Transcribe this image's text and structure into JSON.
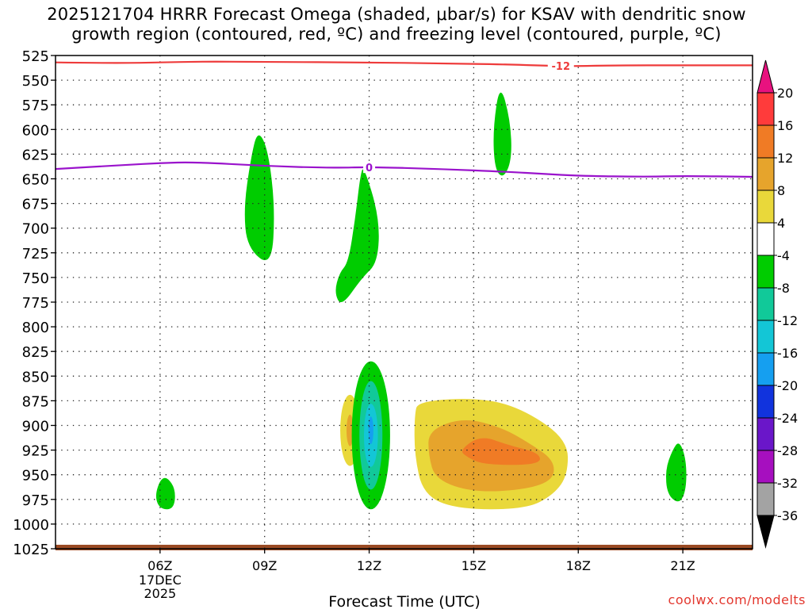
{
  "title_line1": "2025121704 HRRR Forecast Omega (shaded, μbar/s) for KSAV with dendritic snow",
  "title_line2": "growth region (contoured, red, ºC) and freezing level (contoured, purple, ºC)",
  "credit": "coolwx.com/modelts",
  "chart_data": {
    "type": "time-height cross section (filled contours)",
    "xlabel": "Forecast Time (UTC)",
    "x_unit": "hours after 2025-12-17 04Z",
    "xlim": [
      -1,
      19
    ],
    "x_ticks": [
      {
        "hour": 2,
        "label": "06Z",
        "sub": [
          "17DEC",
          "2025"
        ]
      },
      {
        "hour": 5,
        "label": "09Z"
      },
      {
        "hour": 8,
        "label": "12Z"
      },
      {
        "hour": 11,
        "label": "15Z"
      },
      {
        "hour": 14,
        "label": "18Z"
      },
      {
        "hour": 17,
        "label": "21Z"
      }
    ],
    "ylabel": "Pressure (hPa)",
    "ylim": [
      1025,
      525
    ],
    "y_ticks": [
      525,
      550,
      575,
      600,
      625,
      650,
      675,
      700,
      725,
      750,
      775,
      800,
      825,
      850,
      875,
      900,
      925,
      950,
      975,
      1000,
      1025
    ],
    "colorbar": {
      "labels": [
        "20",
        "16",
        "12",
        "8",
        "4",
        "-4",
        "-8",
        "-12",
        "-16",
        "-20",
        "-24",
        "-28",
        "-32",
        "-36"
      ],
      "colors": [
        "#ff3b3b",
        "#f07b25",
        "#e6a42c",
        "#e9d83a",
        "#ffffff",
        "#00cc00",
        "#11c999",
        "#13c6d6",
        "#159ff0",
        "#1133dd",
        "#6a16c9",
        "#a60fbf",
        "#a3a3a3"
      ],
      "top_arrow_color": "#e8127f",
      "bottom_arrow_color": "#000000"
    },
    "contours": [
      {
        "name": "dendritic-growth -12C",
        "label": "-12",
        "color": "#ee3b3b",
        "points": [
          [
            -1,
            532
          ],
          [
            1,
            533
          ],
          [
            3,
            531
          ],
          [
            5,
            531.5
          ],
          [
            8,
            532
          ],
          [
            10,
            533
          ],
          [
            12,
            534
          ],
          [
            13.5,
            536
          ],
          [
            15,
            535
          ],
          [
            17,
            535
          ],
          [
            19,
            535
          ]
        ],
        "label_at": [
          13.5,
          535.5
        ]
      },
      {
        "name": "freezing level 0C",
        "label": "0",
        "color": "#9a13cc",
        "points": [
          [
            -1,
            640
          ],
          [
            1,
            636
          ],
          [
            2,
            634
          ],
          [
            3,
            633
          ],
          [
            5,
            637
          ],
          [
            7,
            639
          ],
          [
            8,
            638
          ],
          [
            10,
            640
          ],
          [
            12,
            643
          ],
          [
            13,
            645
          ],
          [
            14,
            647
          ],
          [
            16,
            648
          ],
          [
            17,
            647
          ],
          [
            19,
            648
          ]
        ],
        "label_at": [
          8,
          638.5
        ]
      }
    ],
    "omega_areas": [
      {
        "cat": 4,
        "shape": "ellipse",
        "cx": 0.45,
        "cy": 730,
        "rx": 0.45,
        "ry": 122
      },
      {
        "cat": 4,
        "shape": "ellipse",
        "cx": 0.0,
        "cy": 900,
        "rx": 0.13,
        "ry": 22
      },
      {
        "cat": 5,
        "shape": "poly",
        "points": [
          [
            4.8,
            600
          ],
          [
            5.1,
            620
          ],
          [
            5.3,
            680
          ],
          [
            5.2,
            740
          ],
          [
            4.5,
            720
          ],
          [
            4.4,
            680
          ],
          [
            4.6,
            630
          ]
        ]
      },
      {
        "cat": 5,
        "shape": "poly",
        "points": [
          [
            7.85,
            637
          ],
          [
            8.3,
            690
          ],
          [
            8.25,
            735
          ],
          [
            7.8,
            750
          ],
          [
            7.2,
            780
          ],
          [
            7.0,
            765
          ],
          [
            7.15,
            745
          ],
          [
            7.4,
            735
          ],
          [
            7.6,
            690
          ],
          [
            7.75,
            645
          ]
        ]
      },
      {
        "cat": 5,
        "shape": "poly",
        "points": [
          [
            11.75,
            552
          ],
          [
            12.05,
            590
          ],
          [
            12.1,
            630
          ],
          [
            11.85,
            650
          ],
          [
            11.6,
            640
          ],
          [
            11.55,
            600
          ]
        ]
      },
      {
        "cat": 4,
        "shape": "poly",
        "points": [
          [
            16.85,
            680
          ],
          [
            17.0,
            720
          ],
          [
            17.2,
            760
          ],
          [
            17.1,
            800
          ],
          [
            16.75,
            810
          ],
          [
            16.5,
            800
          ],
          [
            16.5,
            760
          ],
          [
            16.7,
            720
          ]
        ]
      },
      {
        "cat": 5,
        "shape": "poly",
        "points": [
          [
            2.2,
            952
          ],
          [
            2.45,
            965
          ],
          [
            2.4,
            985
          ],
          [
            2.0,
            985
          ],
          [
            1.85,
            972
          ],
          [
            2.0,
            955
          ]
        ]
      },
      {
        "cat": 4,
        "shape": "ellipse",
        "cx": 7.45,
        "cy": 905,
        "rx": 0.55,
        "ry": 70
      },
      {
        "cat": 3,
        "shape": "ellipse",
        "cx": 7.45,
        "cy": 905,
        "rx": 0.28,
        "ry": 36
      },
      {
        "cat": 2,
        "shape": "ellipse",
        "cx": 7.45,
        "cy": 905,
        "rx": 0.1,
        "ry": 16
      },
      {
        "cat": 5,
        "shape": "ellipse",
        "cx": 8.05,
        "cy": 910,
        "rx": 0.55,
        "ry": 75
      },
      {
        "cat": 6,
        "shape": "ellipse",
        "cx": 8.05,
        "cy": 910,
        "rx": 0.33,
        "ry": 55
      },
      {
        "cat": 7,
        "shape": "ellipse",
        "cx": 8.05,
        "cy": 910,
        "rx": 0.2,
        "ry": 32
      },
      {
        "cat": 8,
        "shape": "ellipse",
        "cx": 8.05,
        "cy": 905,
        "rx": 0.07,
        "ry": 14
      },
      {
        "cat": 4,
        "shape": "poly",
        "points": [
          [
            9.2,
            862
          ],
          [
            11.5,
            858
          ],
          [
            12.6,
            870
          ],
          [
            14.05,
            905
          ],
          [
            14.1,
            950
          ],
          [
            13.5,
            980
          ],
          [
            12.6,
            992
          ],
          [
            10.5,
            995
          ],
          [
            9.5,
            992
          ],
          [
            9.1,
            950
          ],
          [
            9.05,
            900
          ]
        ]
      },
      {
        "cat": 3,
        "shape": "poly",
        "points": [
          [
            9.4,
            875
          ],
          [
            11.3,
            872
          ],
          [
            12.5,
            885
          ],
          [
            13.7,
            915
          ],
          [
            13.7,
            950
          ],
          [
            13.3,
            970
          ],
          [
            12.5,
            985
          ],
          [
            10.5,
            985
          ],
          [
            9.55,
            970
          ],
          [
            9.3,
            930
          ],
          [
            9.3,
            890
          ]
        ]
      },
      {
        "cat": 2,
        "shape": "poly",
        "points": [
          [
            9.7,
            905
          ],
          [
            10.7,
            892
          ],
          [
            11.8,
            902
          ],
          [
            12.6,
            918
          ],
          [
            13.3,
            935
          ],
          [
            13.3,
            955
          ],
          [
            12.5,
            965
          ],
          [
            11.0,
            968
          ],
          [
            9.9,
            955
          ],
          [
            9.7,
            930
          ]
        ]
      },
      {
        "cat": 1,
        "shape": "poly",
        "points": [
          [
            10.6,
            925
          ],
          [
            11.2,
            910
          ],
          [
            12.0,
            920
          ],
          [
            12.9,
            928
          ],
          [
            12.9,
            940
          ],
          [
            11.3,
            940
          ],
          [
            10.8,
            932
          ]
        ]
      },
      {
        "cat": 5,
        "shape": "poly",
        "points": [
          [
            16.9,
            915
          ],
          [
            17.1,
            935
          ],
          [
            17.1,
            965
          ],
          [
            16.9,
            980
          ],
          [
            16.55,
            970
          ],
          [
            16.5,
            945
          ],
          [
            16.7,
            925
          ]
        ]
      },
      {
        "cat": 4,
        "shape": "poly",
        "points": [
          [
            18.6,
            825
          ],
          [
            19,
            822
          ],
          [
            19,
            990
          ],
          [
            18.6,
            975
          ],
          [
            18.45,
            940
          ],
          [
            18.45,
            880
          ],
          [
            18.5,
            845
          ]
        ]
      }
    ]
  }
}
